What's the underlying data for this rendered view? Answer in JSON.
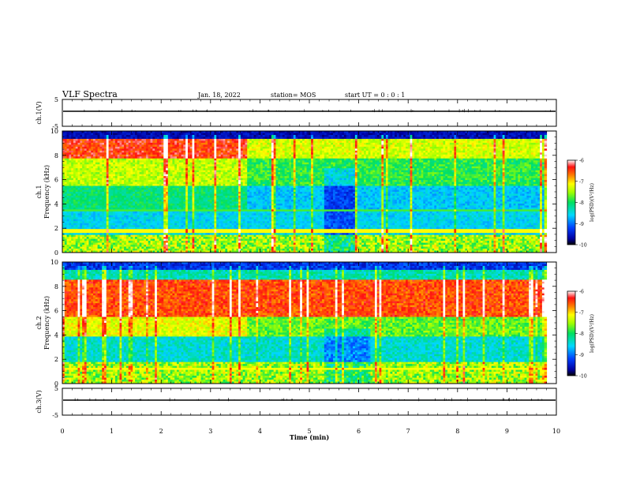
{
  "header": {
    "title": "VLF Spectra",
    "date": "Jan. 18, 2022",
    "station": "station= MOS",
    "start": "start  UT =   0 : 0  : 1"
  },
  "chart_data": [
    {
      "type": "line",
      "panel": "ch1-waveform",
      "ylabel": "ch.1(V)",
      "ylim": [
        -5,
        5
      ],
      "yticks": [
        "5",
        "-5"
      ],
      "xlim": [
        0,
        10
      ],
      "baseline": 0
    },
    {
      "type": "heatmap",
      "panel": "ch1-spectrogram",
      "ylabel": "ch.1\nFrequency (kHz)",
      "ylim": [
        0,
        10
      ],
      "yticks": [
        "0",
        "2",
        "4",
        "6",
        "8",
        "10"
      ],
      "xlim": [
        0,
        10
      ],
      "data_end_min": 9.8,
      "colorbar": {
        "label": "log(PSD)(V²/Hz)",
        "range": [
          -10,
          -6
        ],
        "ticks": [
          "-6",
          "-7",
          "-8",
          "-9",
          "-10"
        ],
        "colormap": "rainbow"
      }
    },
    {
      "type": "heatmap",
      "panel": "ch2-spectrogram",
      "ylabel": "ch.2\nFrequency (kHz)",
      "ylim": [
        0,
        10
      ],
      "yticks": [
        "0",
        "2",
        "4",
        "6",
        "8",
        "10"
      ],
      "xlim": [
        0,
        10
      ],
      "data_end_min": 9.8,
      "colorbar": {
        "label": "log(PSD)(V²/Hz)",
        "range": [
          -10,
          -6
        ],
        "ticks": [
          "-6",
          "-7",
          "-8",
          "-9",
          "-10"
        ],
        "colormap": "rainbow"
      }
    },
    {
      "type": "line",
      "panel": "ch3-waveform",
      "ylabel": "ch.3(V)",
      "ylim": [
        -5,
        5
      ],
      "yticks": [
        "5",
        "-5"
      ],
      "xlim": [
        0,
        10
      ],
      "baseline": 0
    }
  ],
  "xaxis": {
    "label": "Time (min)",
    "ticks": [
      "0",
      "1",
      "2",
      "3",
      "4",
      "5",
      "6",
      "7",
      "8",
      "9",
      "10"
    ]
  }
}
